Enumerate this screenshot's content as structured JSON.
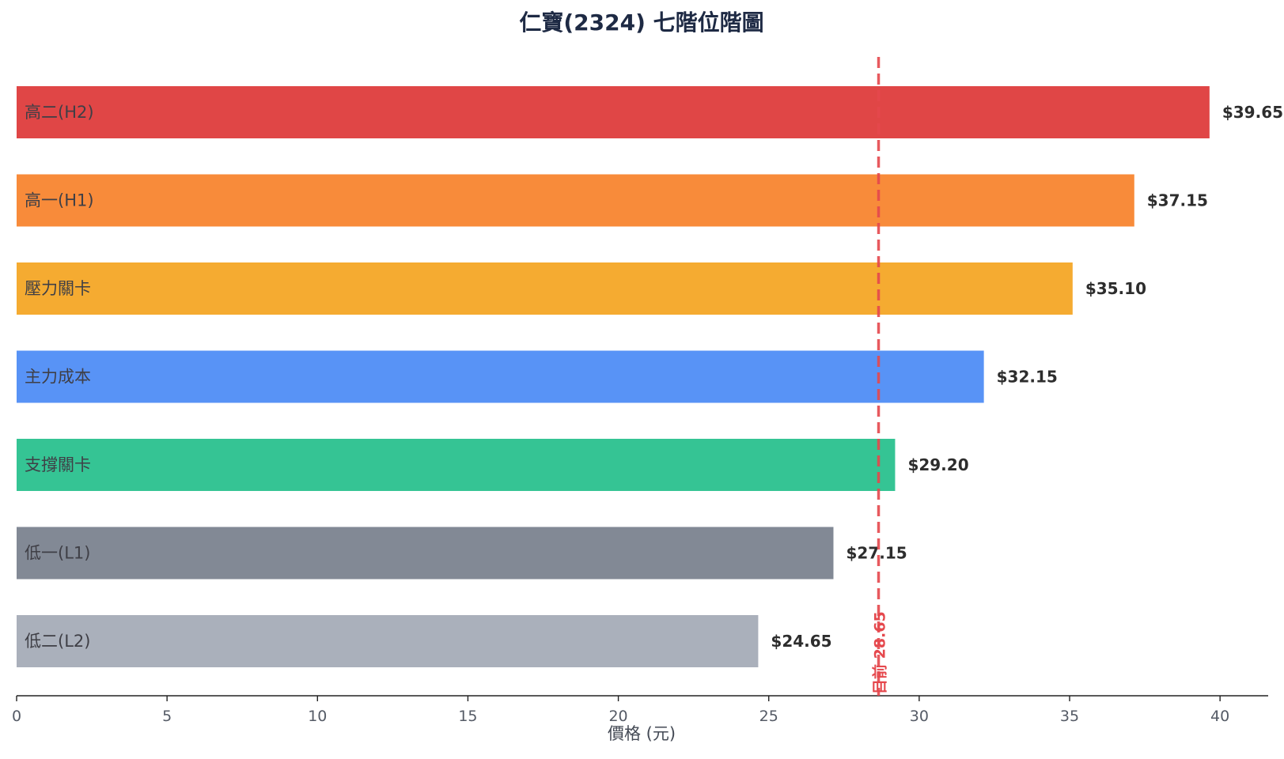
{
  "chart_data": {
    "type": "bar",
    "orientation": "horizontal",
    "title": "仁寶(2324) 七階位階圖",
    "xlabel": "價格 (元)",
    "ylabel": "",
    "xlim": [
      0,
      41.6
    ],
    "x_ticks": [
      0,
      5,
      10,
      15,
      20,
      25,
      30,
      35,
      40
    ],
    "grid": false,
    "bars": [
      {
        "category": "高二(H2)",
        "value": 39.65,
        "label": "$39.65",
        "color": "#e04646"
      },
      {
        "category": "高一(H1)",
        "value": 37.15,
        "label": "$37.15",
        "color": "#f88b3a"
      },
      {
        "category": "壓力關卡",
        "value": 35.1,
        "label": "$35.10",
        "color": "#f5ab31"
      },
      {
        "category": "主力成本",
        "value": 32.15,
        "label": "$32.15",
        "color": "#5893f6"
      },
      {
        "category": "支撐關卡",
        "value": 29.2,
        "label": "$29.20",
        "color": "#35c494"
      },
      {
        "category": "低一(L1)",
        "value": 27.15,
        "label": "$27.15",
        "color": "#828995"
      },
      {
        "category": "低二(L2)",
        "value": 24.65,
        "label": "$24.65",
        "color": "#aab0bb"
      }
    ],
    "current_price": {
      "value": 28.65,
      "label": "目前 28.65",
      "color": "#e5484d"
    }
  }
}
